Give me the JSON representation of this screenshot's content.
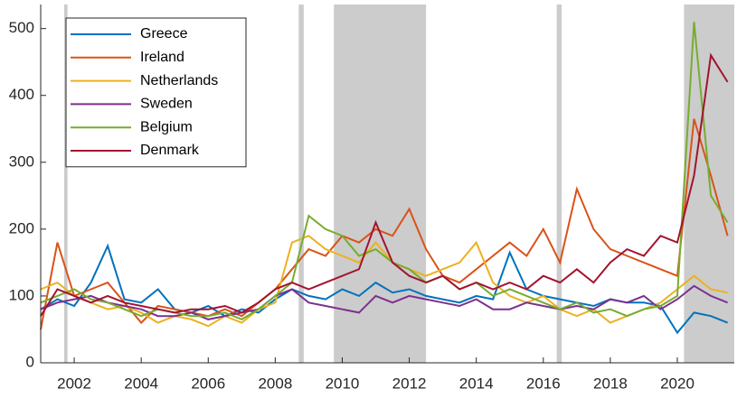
{
  "chart_data": {
    "type": "line",
    "x": [
      2001,
      2001.5,
      2002,
      2002.5,
      2003,
      2003.5,
      2004,
      2004.5,
      2005,
      2005.5,
      2006,
      2006.5,
      2007,
      2007.5,
      2008,
      2008.5,
      2009,
      2009.5,
      2010,
      2010.5,
      2011,
      2011.5,
      2012,
      2012.5,
      2013,
      2013.5,
      2014,
      2014.5,
      2015,
      2015.5,
      2016,
      2016.5,
      2017,
      2017.5,
      2018,
      2018.5,
      2019,
      2019.5,
      2020,
      2020.5,
      2021,
      2021.5
    ],
    "series": [
      {
        "name": "Greece",
        "color": "#0072bd",
        "values": [
          80,
          95,
          85,
          120,
          175,
          95,
          90,
          110,
          80,
          75,
          85,
          70,
          80,
          75,
          95,
          110,
          100,
          95,
          110,
          100,
          120,
          105,
          110,
          100,
          95,
          90,
          100,
          95,
          165,
          110,
          100,
          95,
          90,
          85,
          95,
          90,
          90,
          85,
          45,
          75,
          70,
          60
        ]
      },
      {
        "name": "Ireland",
        "color": "#d95319",
        "values": [
          50,
          180,
          100,
          110,
          120,
          90,
          60,
          85,
          80,
          75,
          70,
          80,
          70,
          90,
          110,
          140,
          170,
          160,
          190,
          180,
          200,
          190,
          230,
          170,
          130,
          120,
          140,
          160,
          180,
          160,
          200,
          150,
          260,
          200,
          170,
          160,
          150,
          140,
          130,
          365,
          280,
          190
        ]
      },
      {
        "name": "Netherlands",
        "color": "#edb120",
        "values": [
          110,
          120,
          100,
          90,
          80,
          85,
          75,
          60,
          70,
          65,
          55,
          70,
          60,
          80,
          90,
          180,
          190,
          170,
          160,
          150,
          180,
          150,
          140,
          130,
          140,
          150,
          180,
          120,
          100,
          90,
          100,
          80,
          70,
          80,
          60,
          70,
          80,
          90,
          110,
          130,
          110,
          105
        ]
      },
      {
        "name": "Sweden",
        "color": "#7e2f8e",
        "values": [
          80,
          90,
          95,
          100,
          90,
          85,
          80,
          70,
          70,
          75,
          65,
          70,
          75,
          80,
          100,
          110,
          90,
          85,
          80,
          75,
          100,
          90,
          100,
          95,
          90,
          85,
          95,
          80,
          80,
          90,
          85,
          80,
          85,
          80,
          95,
          90,
          100,
          80,
          95,
          115,
          100,
          90
        ]
      },
      {
        "name": "Belgium",
        "color": "#77ac30",
        "values": [
          90,
          100,
          110,
          95,
          90,
          80,
          70,
          80,
          75,
          70,
          70,
          75,
          65,
          80,
          100,
          120,
          220,
          200,
          190,
          160,
          170,
          150,
          140,
          120,
          130,
          110,
          120,
          100,
          110,
          100,
          90,
          80,
          90,
          75,
          80,
          70,
          80,
          85,
          100,
          510,
          250,
          210
        ]
      },
      {
        "name": "Denmark",
        "color": "#a2142f",
        "values": [
          70,
          110,
          100,
          90,
          100,
          90,
          85,
          80,
          75,
          80,
          80,
          85,
          75,
          90,
          110,
          120,
          110,
          120,
          130,
          140,
          210,
          150,
          130,
          120,
          130,
          110,
          120,
          110,
          120,
          110,
          130,
          120,
          140,
          120,
          150,
          170,
          160,
          190,
          180,
          280,
          460,
          420
        ]
      }
    ],
    "shaded_regions": [
      [
        2001.7,
        2001.8
      ],
      [
        2008.7,
        2008.85
      ],
      [
        2009.75,
        2012.5
      ],
      [
        2016.4,
        2016.55
      ],
      [
        2020.2,
        2021.7
      ]
    ],
    "shade_color": "#cccccc",
    "xlim": [
      2001,
      2021.7
    ],
    "xticks": [
      2002,
      2004,
      2006,
      2008,
      2010,
      2012,
      2014,
      2016,
      2018,
      2020
    ],
    "ylim": [
      0,
      536
    ],
    "yticks": [
      0,
      100,
      200,
      300,
      400,
      500
    ],
    "legend": "upper left"
  }
}
